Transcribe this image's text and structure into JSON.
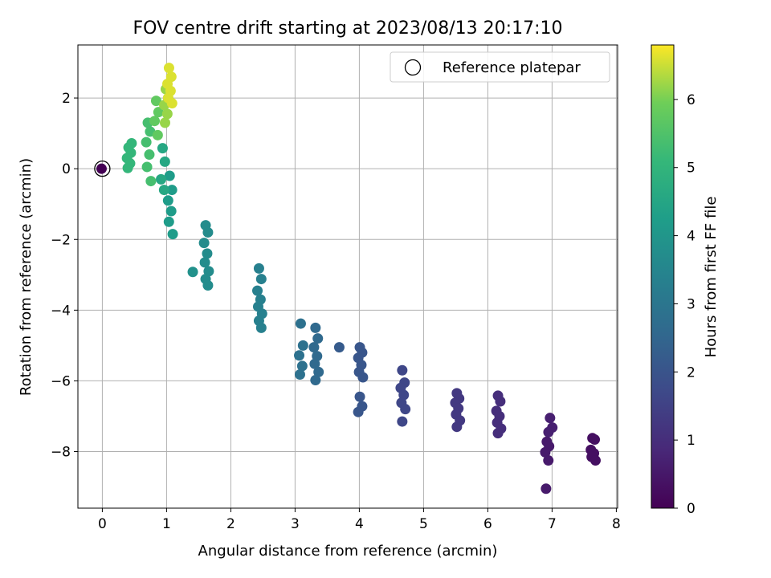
{
  "chart_data": {
    "type": "scatter",
    "title": "FOV centre drift starting at 2023/08/13 20:17:10",
    "xlabel": "Angular distance from reference (arcmin)",
    "ylabel": "Rotation from reference (arcmin)",
    "colorbar_label": "Hours from first FF file",
    "xlim": [
      -0.38,
      8.02
    ],
    "ylim": [
      -9.6,
      3.5
    ],
    "x_ticks": [
      0,
      1,
      2,
      3,
      4,
      5,
      6,
      7,
      8
    ],
    "y_ticks": [
      -8,
      -6,
      -4,
      -2,
      0,
      2
    ],
    "colorbar_range": [
      0,
      6.8
    ],
    "colorbar_ticks": [
      0,
      1,
      2,
      3,
      4,
      5,
      6
    ],
    "colormap": "viridis",
    "grid": true,
    "legend": {
      "entry": "Reference platepar",
      "placement": "top-right"
    },
    "reference_point": {
      "x": 0,
      "y": 0
    },
    "clusters": [
      {
        "t": 0.0,
        "x": 0.0,
        "y": [
          0.0
        ]
      },
      {
        "t": 0.3,
        "x": 7.64,
        "y": [
          -7.62,
          -7.66,
          -7.95,
          -8.05,
          -8.15,
          -8.25
        ]
      },
      {
        "t": 0.55,
        "x": 6.93,
        "y": [
          -7.72,
          -7.85,
          -8.02,
          -8.25,
          -9.05
        ]
      },
      {
        "t": 0.65,
        "x": 6.98,
        "y": [
          -7.05,
          -7.32,
          -7.45
        ]
      },
      {
        "t": 1.0,
        "x": 6.17,
        "y": [
          -6.42,
          -6.58,
          -6.85,
          -7.0,
          -7.18,
          -7.35,
          -7.48
        ]
      },
      {
        "t": 1.3,
        "x": 5.53,
        "y": [
          -6.35,
          -6.5,
          -6.62,
          -6.78,
          -6.95,
          -7.12,
          -7.3
        ]
      },
      {
        "t": 1.65,
        "x": 4.68,
        "y": [
          -5.7,
          -6.05,
          -6.2,
          -6.4,
          -6.62,
          -6.8,
          -7.15
        ]
      },
      {
        "t": 2.05,
        "x": 4.02,
        "y": [
          -5.05,
          -5.2,
          -5.35,
          -5.55,
          -5.75,
          -5.9,
          -6.45,
          -6.72,
          -6.88
        ]
      },
      {
        "t": 2.2,
        "x": 3.7,
        "y": [
          -5.05
        ]
      },
      {
        "t": 2.6,
        "x": 3.33,
        "y": [
          -4.5,
          -4.8,
          -5.05,
          -5.3,
          -5.52,
          -5.75,
          -5.98
        ]
      },
      {
        "t": 2.85,
        "x": 3.1,
        "y": [
          -4.38,
          -5.0,
          -5.28,
          -5.58,
          -5.82
        ]
      },
      {
        "t": 3.35,
        "x": 2.45,
        "y": [
          -2.82,
          -3.12,
          -3.45,
          -3.7,
          -3.9,
          -4.1,
          -4.3,
          -4.5
        ]
      },
      {
        "t": 3.7,
        "x": 1.62,
        "y": [
          -1.6,
          -1.8,
          -2.1,
          -2.4,
          -2.65,
          -2.9,
          -3.12,
          -3.3
        ]
      },
      {
        "t": 3.85,
        "x": 1.42,
        "y": [
          -2.92
        ]
      },
      {
        "t": 4.2,
        "x": 1.06,
        "y": [
          -0.2,
          -0.6,
          -0.9,
          -1.2,
          -1.5,
          -1.85
        ]
      },
      {
        "t": 4.55,
        "x": 0.95,
        "y": [
          0.58,
          0.2,
          -0.3,
          -0.6
        ]
      },
      {
        "t": 5.05,
        "x": 0.42,
        "y": [
          0.6,
          0.45,
          0.3,
          0.15,
          0.02,
          0.72
        ]
      },
      {
        "t": 5.35,
        "x": 0.72,
        "y": [
          1.3,
          1.05,
          0.75,
          0.4,
          0.05,
          -0.35
        ]
      },
      {
        "t": 5.75,
        "x": 0.85,
        "y": [
          1.92,
          1.6,
          1.35,
          0.95
        ]
      },
      {
        "t": 6.2,
        "x": 1.0,
        "y": [
          2.25,
          2.0,
          1.8,
          1.55,
          1.3
        ]
      },
      {
        "t": 6.6,
        "x": 1.05,
        "y": [
          2.85,
          2.6,
          2.4,
          2.2,
          2.0,
          1.85
        ]
      }
    ]
  }
}
